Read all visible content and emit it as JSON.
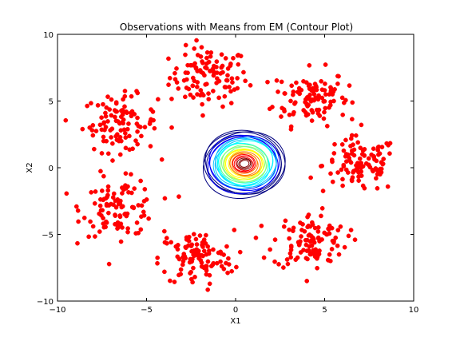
{
  "chart_data": {
    "type": "scatter",
    "title": "Observations with Means from EM (Contour Plot)",
    "xlabel": "X1",
    "ylabel": "X2",
    "xlim": [
      -10,
      10
    ],
    "ylim": [
      -10,
      10
    ],
    "xticks": [
      -10,
      -5,
      0,
      5,
      10
    ],
    "yticks": [
      -10,
      -5,
      0,
      5,
      10
    ],
    "xtick_labels": [
      "−10",
      "−5",
      "0",
      "5",
      "10"
    ],
    "ytick_labels": [
      "−10",
      "−5",
      "0",
      "5",
      "10"
    ],
    "grid": false,
    "point_color": "#ff0000",
    "clusters": [
      {
        "center": [
          -1.5,
          6.8
        ],
        "spread": 1.1,
        "n": 110
      },
      {
        "center": [
          4.2,
          5.3
        ],
        "spread": 1.05,
        "n": 110
      },
      {
        "center": [
          -6.5,
          3.3
        ],
        "spread": 1.05,
        "n": 105
      },
      {
        "center": [
          7.0,
          0.2
        ],
        "spread": 1.05,
        "n": 110
      },
      {
        "center": [
          -6.5,
          -3.0
        ],
        "spread": 1.05,
        "n": 105
      },
      {
        "center": [
          -2.2,
          -6.8
        ],
        "spread": 1.05,
        "n": 110
      },
      {
        "center": [
          4.2,
          -5.5
        ],
        "spread": 1.05,
        "n": 110
      }
    ],
    "contour": {
      "center": [
        0.5,
        0.3
      ],
      "colormap": [
        "#000080",
        "#0000ff",
        "#00bfff",
        "#00ffff",
        "#7fff7f",
        "#ffff00",
        "#ff7f00",
        "#ff0000",
        "#800000"
      ]
    }
  }
}
